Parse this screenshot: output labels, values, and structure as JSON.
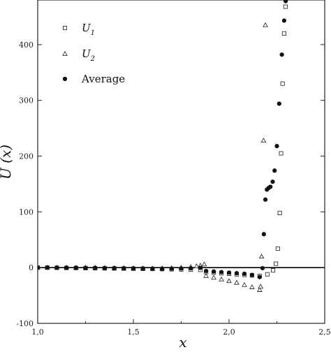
{
  "chart_data": {
    "type": "scatter",
    "xlabel": "x",
    "ylabel": "U (x)",
    "xlim": [
      1.0,
      2.5
    ],
    "ylim": [
      -100,
      480
    ],
    "x_ticks": [
      1.0,
      1.5,
      2.0,
      2.5
    ],
    "x_tick_labels": [
      "1,0",
      "1,5",
      "2,0",
      "2,5"
    ],
    "y_ticks": [
      -100,
      0,
      100,
      200,
      300,
      400
    ],
    "y_tick_labels": [
      "-100",
      "0",
      "100",
      "200",
      "300",
      "400"
    ],
    "zero_line": true,
    "grid": false,
    "legend_position": "top-left",
    "series": [
      {
        "name": "U1",
        "legend_base": "U",
        "legend_sub": "1",
        "marker": "open-square",
        "points": [
          {
            "x": 1.0,
            "y": 0.0
          },
          {
            "x": 1.05,
            "y": 0.0
          },
          {
            "x": 1.1,
            "y": -0.3
          },
          {
            "x": 1.15,
            "y": -0.5
          },
          {
            "x": 1.2,
            "y": -0.7
          },
          {
            "x": 1.25,
            "y": -0.9
          },
          {
            "x": 1.3,
            "y": -1.1
          },
          {
            "x": 1.35,
            "y": -1.3
          },
          {
            "x": 1.4,
            "y": -1.5
          },
          {
            "x": 1.45,
            "y": -1.7
          },
          {
            "x": 1.5,
            "y": -1.9
          },
          {
            "x": 1.55,
            "y": -2.1
          },
          {
            "x": 1.6,
            "y": -2.4
          },
          {
            "x": 1.65,
            "y": -2.7
          },
          {
            "x": 1.7,
            "y": -3.0
          },
          {
            "x": 1.75,
            "y": -3.3
          },
          {
            "x": 1.8,
            "y": -3.6
          },
          {
            "x": 1.85,
            "y": -4.0
          },
          {
            "x": 1.88,
            "y": -8
          },
          {
            "x": 1.92,
            "y": -9
          },
          {
            "x": 1.96,
            "y": -10
          },
          {
            "x": 2.0,
            "y": -11
          },
          {
            "x": 2.04,
            "y": -12
          },
          {
            "x": 2.08,
            "y": -13
          },
          {
            "x": 2.12,
            "y": -14
          },
          {
            "x": 2.16,
            "y": -15
          },
          {
            "x": 2.2,
            "y": -12
          },
          {
            "x": 2.23,
            "y": -5
          },
          {
            "x": 2.245,
            "y": 7
          },
          {
            "x": 2.255,
            "y": 34
          },
          {
            "x": 2.265,
            "y": 98
          },
          {
            "x": 2.272,
            "y": 205
          },
          {
            "x": 2.28,
            "y": 330
          },
          {
            "x": 2.288,
            "y": 420
          },
          {
            "x": 2.295,
            "y": 468
          }
        ]
      },
      {
        "name": "U2",
        "legend_base": "U",
        "legend_sub": "2",
        "marker": "open-triangle",
        "points": [
          {
            "x": 1.0,
            "y": 0.0
          },
          {
            "x": 1.05,
            "y": 0.0
          },
          {
            "x": 1.1,
            "y": 0.0
          },
          {
            "x": 1.15,
            "y": 0.0
          },
          {
            "x": 1.2,
            "y": 0.0
          },
          {
            "x": 1.25,
            "y": 0.0
          },
          {
            "x": 1.3,
            "y": 0.0
          },
          {
            "x": 1.35,
            "y": -0.5
          },
          {
            "x": 1.4,
            "y": -0.7
          },
          {
            "x": 1.45,
            "y": -0.9
          },
          {
            "x": 1.5,
            "y": -1.1
          },
          {
            "x": 1.55,
            "y": -1.3
          },
          {
            "x": 1.6,
            "y": -1.5
          },
          {
            "x": 1.65,
            "y": -1.3
          },
          {
            "x": 1.7,
            "y": -0.8
          },
          {
            "x": 1.75,
            "y": 0.0
          },
          {
            "x": 1.8,
            "y": 1.2
          },
          {
            "x": 1.83,
            "y": 2.5
          },
          {
            "x": 1.85,
            "y": 3.6
          },
          {
            "x": 1.87,
            "y": 6.0
          },
          {
            "x": 1.88,
            "y": -15
          },
          {
            "x": 1.92,
            "y": -18
          },
          {
            "x": 1.96,
            "y": -21
          },
          {
            "x": 2.0,
            "y": -24
          },
          {
            "x": 2.04,
            "y": -27
          },
          {
            "x": 2.08,
            "y": -31
          },
          {
            "x": 2.12,
            "y": -35
          },
          {
            "x": 2.16,
            "y": -40
          },
          {
            "x": 2.165,
            "y": -34
          },
          {
            "x": 2.17,
            "y": 20
          },
          {
            "x": 2.18,
            "y": 228
          },
          {
            "x": 2.19,
            "y": 435
          }
        ]
      },
      {
        "name": "Average",
        "marker": "filled-circle",
        "points": [
          {
            "x": 1.0,
            "y": 0.0
          },
          {
            "x": 1.05,
            "y": 0.0
          },
          {
            "x": 1.1,
            "y": -0.2
          },
          {
            "x": 1.15,
            "y": -0.3
          },
          {
            "x": 1.2,
            "y": -0.4
          },
          {
            "x": 1.25,
            "y": -0.5
          },
          {
            "x": 1.3,
            "y": -0.6
          },
          {
            "x": 1.35,
            "y": -0.8
          },
          {
            "x": 1.4,
            "y": -1.0
          },
          {
            "x": 1.45,
            "y": -1.2
          },
          {
            "x": 1.5,
            "y": -1.4
          },
          {
            "x": 1.55,
            "y": -1.6
          },
          {
            "x": 1.6,
            "y": -1.8
          },
          {
            "x": 1.65,
            "y": -2.0
          },
          {
            "x": 1.7,
            "y": -1.9
          },
          {
            "x": 1.75,
            "y": -1.6
          },
          {
            "x": 1.8,
            "y": -1.2
          },
          {
            "x": 1.85,
            "y": -0.5
          },
          {
            "x": 1.88,
            "y": -6
          },
          {
            "x": 1.92,
            "y": -7
          },
          {
            "x": 1.96,
            "y": -8
          },
          {
            "x": 2.0,
            "y": -9
          },
          {
            "x": 2.04,
            "y": -10
          },
          {
            "x": 2.08,
            "y": -11
          },
          {
            "x": 2.12,
            "y": -13
          },
          {
            "x": 2.16,
            "y": -17
          },
          {
            "x": 2.175,
            "y": -1
          },
          {
            "x": 2.182,
            "y": 60
          },
          {
            "x": 2.19,
            "y": 122
          },
          {
            "x": 2.198,
            "y": 140
          },
          {
            "x": 2.207,
            "y": 143
          },
          {
            "x": 2.216,
            "y": 145
          },
          {
            "x": 2.228,
            "y": 154
          },
          {
            "x": 2.238,
            "y": 174
          },
          {
            "x": 2.25,
            "y": 218
          },
          {
            "x": 2.262,
            "y": 294
          },
          {
            "x": 2.276,
            "y": 382
          },
          {
            "x": 2.288,
            "y": 443
          },
          {
            "x": 2.296,
            "y": 478
          }
        ]
      }
    ]
  }
}
